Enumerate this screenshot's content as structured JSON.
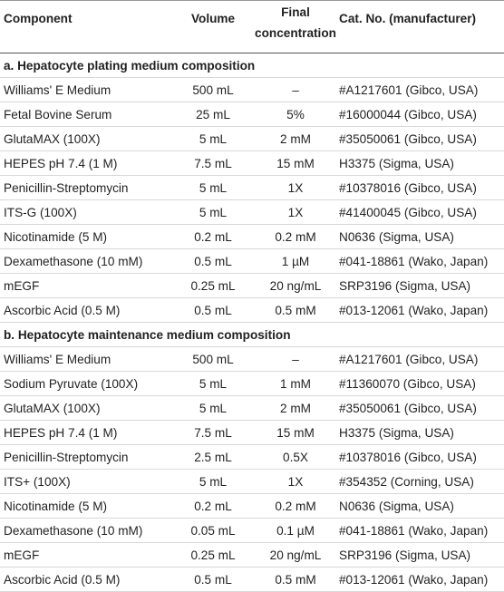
{
  "table": {
    "header": [
      "Component",
      "Volume",
      "Final concentration",
      "Cat. No. (manufacturer)"
    ],
    "sections": [
      {
        "title": "a. Hepatocyte plating medium composition",
        "rows": [
          [
            "Williams' E Medium",
            "500 mL",
            "–",
            "#A1217601 (Gibco, USA)"
          ],
          [
            "Fetal Bovine Serum",
            "25 mL",
            "5%",
            "#16000044 (Gibco, USA)"
          ],
          [
            "GlutaMAX (100X)",
            "5 mL",
            "2 mM",
            "#35050061 (Gibco, USA)"
          ],
          [
            "HEPES pH 7.4 (1 M)",
            "7.5 mL",
            "15 mM",
            "H3375 (Sigma, USA)"
          ],
          [
            "Penicillin-Streptomycin",
            "5 mL",
            "1X",
            "#10378016 (Gibco, USA)"
          ],
          [
            "ITS-G (100X)",
            "5 mL",
            "1X",
            "#41400045 (Gibco, USA)"
          ],
          [
            "Nicotinamide (5 M)",
            "0.2 mL",
            "0.2 mM",
            "N0636 (Sigma, USA)"
          ],
          [
            "Dexamethasone (10 mM)",
            "0.5 mL",
            "1 µM",
            "#041-18861 (Wako, Japan)"
          ],
          [
            "mEGF",
            "0.25 mL",
            "20 ng/mL",
            "SRP3196 (Sigma, USA)"
          ],
          [
            "Ascorbic Acid (0.5 M)",
            "0.5 mL",
            "0.5 mM",
            "#013-12061 (Wako, Japan)"
          ]
        ]
      },
      {
        "title": "b. Hepatocyte maintenance medium composition",
        "rows": [
          [
            "Williams' E Medium",
            "500 mL",
            "–",
            "#A1217601 (Gibco, USA)"
          ],
          [
            "Sodium Pyruvate (100X)",
            "5 mL",
            "1 mM",
            "#11360070 (Gibco, USA)"
          ],
          [
            "GlutaMAX (100X)",
            "5 mL",
            "2 mM",
            "#35050061 (Gibco, USA)"
          ],
          [
            "HEPES pH 7.4 (1 M)",
            "7.5 mL",
            "15 mM",
            "H3375 (Sigma, USA)"
          ],
          [
            "Penicillin-Streptomycin",
            "2.5 mL",
            "0.5X",
            "#10378016 (Gibco, USA)"
          ],
          [
            "ITS+ (100X)",
            "5 mL",
            "1X",
            "#354352 (Corning, USA)"
          ],
          [
            "Nicotinamide (5 M)",
            "0.2 mL",
            "0.2 mM",
            "N0636 (Sigma, USA)"
          ],
          [
            "Dexamethasone (10 mM)",
            "0.05 mL",
            "0.1 µM",
            "#041-18861 (Wako, Japan)"
          ],
          [
            "mEGF",
            "0.25 mL",
            "20 ng/mL",
            "SRP3196 (Sigma, USA)"
          ],
          [
            "Ascorbic Acid (0.5 M)",
            "0.5 mL",
            "0.5 mM",
            "#013-12061 (Wako, Japan)"
          ]
        ]
      }
    ]
  }
}
